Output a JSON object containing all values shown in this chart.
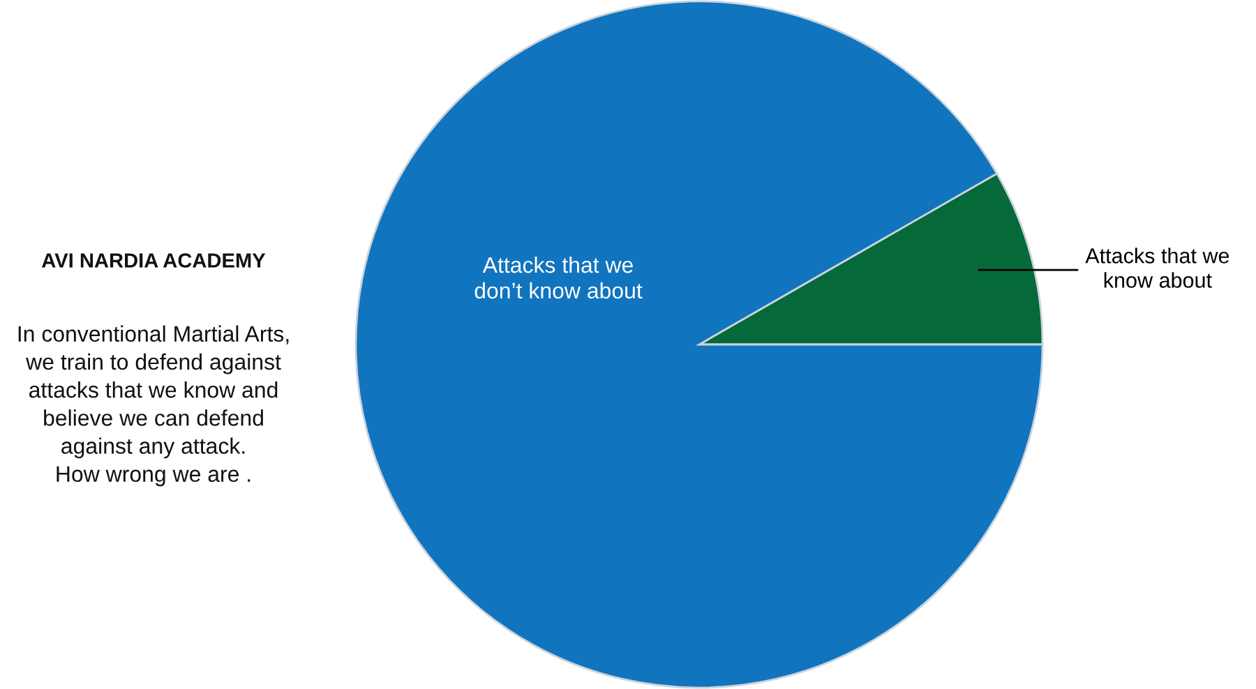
{
  "chart_data": {
    "type": "pie",
    "title": "AVI NARDIA ACADEMY",
    "annotations": [
      "In conventional Martial Arts,\nwe train to defend against\nattacks that we know and\nbelieve we can defend\nagainst any attack.\nHow wrong we are ."
    ],
    "categories": [
      "Attacks that we\nknow about",
      "Attacks that we\ndon’t know about"
    ],
    "values": [
      8.3,
      91.7
    ],
    "colors": [
      "#05693a",
      "#1174be"
    ]
  }
}
